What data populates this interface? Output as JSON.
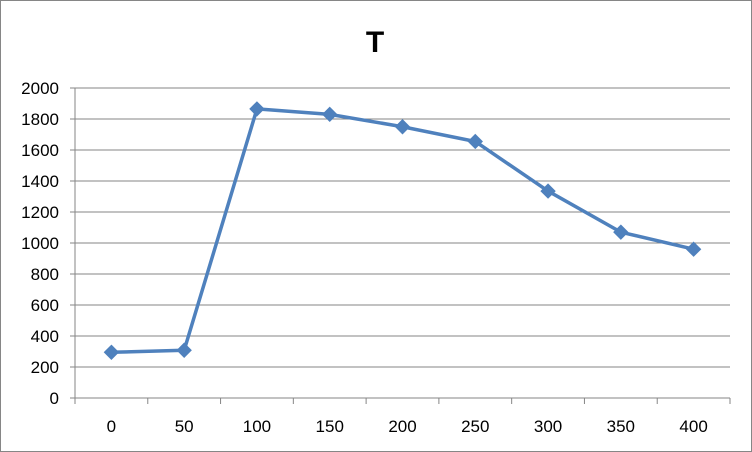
{
  "chart_data": {
    "type": "line",
    "title": "T",
    "xlabel": "",
    "ylabel": "",
    "categories": [
      "0",
      "50",
      "100",
      "150",
      "200",
      "250",
      "300",
      "350",
      "400"
    ],
    "y_ticks": [
      "0",
      "200",
      "400",
      "600",
      "800",
      "1000",
      "1200",
      "1400",
      "1600",
      "1800",
      "2000"
    ],
    "ylim": [
      0,
      2000
    ],
    "grid": true,
    "legend": "none",
    "series": [
      {
        "values": [
          295,
          308,
          1865,
          1830,
          1750,
          1655,
          1335,
          1070,
          960
        ],
        "color": "#4F81BD",
        "marker": "diamond"
      }
    ]
  }
}
